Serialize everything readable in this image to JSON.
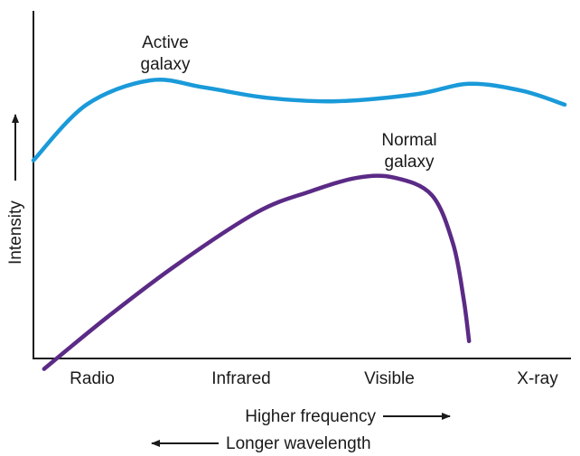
{
  "chart_data": {
    "type": "line",
    "title": "",
    "xlabel": "Higher frequency",
    "xlabel2": "Longer wavelength",
    "ylabel": "Intensity",
    "categories": [
      "Radio",
      "Infrared",
      "Visible",
      "X-ray"
    ],
    "grid": false,
    "legend": "none",
    "series": [
      {
        "name": "Active galaxy",
        "label_lines": [
          "Active",
          "galaxy"
        ],
        "color": "#1a9ad9",
        "points": [
          [
            0.0,
            0.57
          ],
          [
            0.1,
            0.73
          ],
          [
            0.22,
            0.8
          ],
          [
            0.32,
            0.78
          ],
          [
            0.44,
            0.75
          ],
          [
            0.57,
            0.74
          ],
          [
            0.72,
            0.76
          ],
          [
            0.82,
            0.79
          ],
          [
            0.92,
            0.77
          ],
          [
            1.0,
            0.73
          ]
        ]
      },
      {
        "name": "Normal galaxy",
        "label_lines": [
          "Normal",
          "galaxy"
        ],
        "color": "#5b2a86",
        "points": [
          [
            0.02,
            -0.03
          ],
          [
            0.14,
            0.12
          ],
          [
            0.27,
            0.27
          ],
          [
            0.42,
            0.42
          ],
          [
            0.52,
            0.48
          ],
          [
            0.61,
            0.52
          ],
          [
            0.68,
            0.52
          ],
          [
            0.75,
            0.47
          ],
          [
            0.79,
            0.33
          ],
          [
            0.81,
            0.17
          ],
          [
            0.82,
            0.05
          ]
        ]
      }
    ],
    "xlim": [
      0,
      1
    ],
    "ylim": [
      0,
      1
    ]
  },
  "colors": {
    "axis": "#1a1a1a",
    "active": "#1a9ad9",
    "normal": "#5b2a86"
  }
}
